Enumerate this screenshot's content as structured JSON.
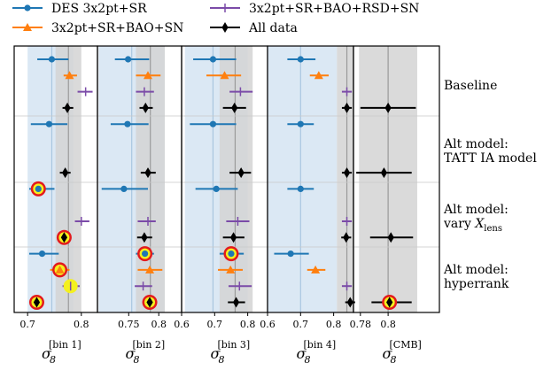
{
  "chart_data": {
    "type": "scatter",
    "legend": {
      "placement": "top",
      "entries": [
        {
          "key": "des",
          "label": "DES 3x2pt+SR"
        },
        {
          "key": "bao_sn",
          "label": "3x2pt+SR+BAO+SN"
        },
        {
          "key": "bao_rsd_sn",
          "label": "3x2pt+SR+BAO+RSD+SN"
        },
        {
          "key": "all",
          "label": "All data"
        }
      ]
    },
    "colors": {
      "des": "#1f77b4",
      "bao_sn": "#ff7f0e",
      "bao_rsd_sn": "#7b4ba8",
      "all": "#000000",
      "highlight_ring": "#e31a1c",
      "highlight_fill": "#f4f01e",
      "blue_band": "#dbe8f4",
      "gray_band": "#d4d4d4",
      "separator": "#c8c8c8"
    },
    "groups": [
      {
        "label_lines": [
          "Baseline"
        ]
      },
      {
        "label_lines": [
          "Alt model:",
          "TATT IA model"
        ]
      },
      {
        "label_lines": [
          "Alt model:",
          "vary X_lens"
        ]
      },
      {
        "label_lines": [
          "Alt model:",
          "hyperrank"
        ]
      }
    ],
    "panels": [
      {
        "xlabel": {
          "main": "σ",
          "sub": "8",
          "sup": "[bin 1]"
        },
        "xlim": [
          0.675,
          0.83
        ],
        "ticks": [
          {
            "v": 0.7,
            "label": "0.7"
          },
          {
            "v": 0.8,
            "label": "0.8"
          }
        ],
        "blue_band": [
          0.7,
          0.785
        ],
        "gray_band": [
          0.752,
          0.8
        ],
        "blue_line": 0.745,
        "gray_line": 0.776,
        "points": [
          {
            "row": 0,
            "series": "des",
            "x": 0.745,
            "lo": 0.718,
            "hi": 0.776
          },
          {
            "row": 1,
            "series": "bao_sn",
            "x": 0.778,
            "lo": 0.767,
            "hi": 0.792
          },
          {
            "row": 2,
            "series": "bao_rsd_sn",
            "x": 0.808,
            "lo": 0.793,
            "hi": 0.821
          },
          {
            "row": 3,
            "series": "all",
            "x": 0.774,
            "lo": 0.765,
            "hi": 0.785
          },
          {
            "row": 4,
            "series": "des",
            "x": 0.74,
            "lo": 0.706,
            "hi": 0.774
          },
          {
            "row": 7,
            "series": "all",
            "x": 0.77,
            "lo": 0.76,
            "hi": 0.78
          },
          {
            "row": 8,
            "series": "des",
            "x": 0.72,
            "lo": 0.703,
            "hi": 0.75,
            "highlight": true
          },
          {
            "row": 10,
            "series": "bao_rsd_sn",
            "x": 0.8,
            "lo": 0.788,
            "hi": 0.815
          },
          {
            "row": 11,
            "series": "all",
            "x": 0.768,
            "lo": 0.758,
            "hi": 0.779,
            "highlight": true
          },
          {
            "row": 12,
            "series": "des",
            "x": 0.727,
            "lo": 0.703,
            "hi": 0.758
          },
          {
            "row": 13,
            "series": "bao_sn",
            "x": 0.76,
            "lo": 0.742,
            "hi": 0.778,
            "highlight": true
          },
          {
            "row": 14,
            "series": "bao_rsd_sn",
            "x": 0.78,
            "lo": 0.765,
            "hi": 0.797,
            "highlight": true
          },
          {
            "row": 15,
            "series": "all",
            "x": 0.717,
            "lo": 0.708,
            "hi": 0.727,
            "highlight": true
          }
        ]
      },
      {
        "xlabel": {
          "main": "σ",
          "sub": "8",
          "sup": "[bin 2]"
        },
        "xlim": [
          0.698,
          0.838
        ],
        "ticks": [
          {
            "v": 0.75,
            "label": "0.75"
          },
          {
            "v": 0.8,
            "label": "0.8"
          }
        ],
        "blue_band": [
          0.7,
          0.81
        ],
        "gray_band": [
          0.762,
          0.81
        ],
        "blue_line": 0.755,
        "gray_line": 0.786,
        "points": [
          {
            "row": 0,
            "series": "des",
            "x": 0.749,
            "lo": 0.727,
            "hi": 0.784
          },
          {
            "row": 1,
            "series": "bao_sn",
            "x": 0.782,
            "lo": 0.762,
            "hi": 0.803
          },
          {
            "row": 2,
            "series": "bao_rsd_sn",
            "x": 0.776,
            "lo": 0.762,
            "hi": 0.792
          },
          {
            "row": 3,
            "series": "all",
            "x": 0.778,
            "lo": 0.768,
            "hi": 0.79
          },
          {
            "row": 4,
            "series": "des",
            "x": 0.748,
            "lo": 0.72,
            "hi": 0.783
          },
          {
            "row": 7,
            "series": "all",
            "x": 0.782,
            "lo": 0.77,
            "hi": 0.795
          },
          {
            "row": 8,
            "series": "des",
            "x": 0.742,
            "lo": 0.705,
            "hi": 0.782
          },
          {
            "row": 10,
            "series": "bao_rsd_sn",
            "x": 0.782,
            "lo": 0.765,
            "hi": 0.795
          },
          {
            "row": 11,
            "series": "all",
            "x": 0.776,
            "lo": 0.764,
            "hi": 0.789
          },
          {
            "row": 12,
            "series": "des",
            "x": 0.777,
            "lo": 0.762,
            "hi": 0.792,
            "highlight": true
          },
          {
            "row": 13,
            "series": "bao_sn",
            "x": 0.785,
            "lo": 0.765,
            "hi": 0.806
          },
          {
            "row": 14,
            "series": "bao_rsd_sn",
            "x": 0.774,
            "lo": 0.76,
            "hi": 0.789
          },
          {
            "row": 15,
            "series": "all",
            "x": 0.785,
            "lo": 0.773,
            "hi": 0.797,
            "highlight": true
          }
        ]
      },
      {
        "xlabel": {
          "main": "σ",
          "sub": "8",
          "sup": "[bin 3]"
        },
        "xlim": [
          0.6,
          0.86
        ],
        "ticks": [
          {
            "v": 0.6,
            "label": "0.6"
          },
          {
            "v": 0.7,
            "label": "0.7"
          },
          {
            "v": 0.8,
            "label": "0.8"
          }
        ],
        "blue_band": [
          0.61,
          0.8
        ],
        "gray_band": [
          0.715,
          0.815
        ],
        "blue_line": 0.695,
        "gray_line": 0.762,
        "points": [
          {
            "row": 0,
            "series": "des",
            "x": 0.695,
            "lo": 0.635,
            "hi": 0.765
          },
          {
            "row": 1,
            "series": "bao_sn",
            "x": 0.73,
            "lo": 0.675,
            "hi": 0.78
          },
          {
            "row": 2,
            "series": "bao_rsd_sn",
            "x": 0.778,
            "lo": 0.745,
            "hi": 0.815
          },
          {
            "row": 3,
            "series": "all",
            "x": 0.76,
            "lo": 0.725,
            "hi": 0.795
          },
          {
            "row": 4,
            "series": "des",
            "x": 0.695,
            "lo": 0.625,
            "hi": 0.765
          },
          {
            "row": 7,
            "series": "all",
            "x": 0.78,
            "lo": 0.745,
            "hi": 0.81
          },
          {
            "row": 8,
            "series": "des",
            "x": 0.705,
            "lo": 0.642,
            "hi": 0.77
          },
          {
            "row": 10,
            "series": "bao_rsd_sn",
            "x": 0.77,
            "lo": 0.735,
            "hi": 0.805
          },
          {
            "row": 11,
            "series": "all",
            "x": 0.757,
            "lo": 0.725,
            "hi": 0.79
          },
          {
            "row": 12,
            "series": "des",
            "x": 0.75,
            "lo": 0.715,
            "hi": 0.788,
            "highlight": true
          },
          {
            "row": 13,
            "series": "bao_sn",
            "x": 0.748,
            "lo": 0.71,
            "hi": 0.785
          },
          {
            "row": 14,
            "series": "bao_rsd_sn",
            "x": 0.775,
            "lo": 0.742,
            "hi": 0.812
          },
          {
            "row": 15,
            "series": "all",
            "x": 0.765,
            "lo": 0.74,
            "hi": 0.792
          }
        ]
      },
      {
        "xlabel": {
          "main": "σ",
          "sub": "8",
          "sup": "[bin 4]"
        },
        "xlim": [
          0.6,
          0.86
        ],
        "ticks": [
          {
            "v": 0.6,
            "label": "0.6"
          },
          {
            "v": 0.7,
            "label": "0.7"
          },
          {
            "v": 0.8,
            "label": "0.8"
          }
        ],
        "blue_band": [
          0.6,
          0.81
        ],
        "gray_band": [
          0.81,
          0.86
        ],
        "blue_line": 0.7,
        "gray_line": 0.84,
        "points": [
          {
            "row": 0,
            "series": "des",
            "x": 0.7,
            "lo": 0.66,
            "hi": 0.745
          },
          {
            "row": 1,
            "series": "bao_sn",
            "x": 0.755,
            "lo": 0.728,
            "hi": 0.785
          },
          {
            "row": 2,
            "series": "bao_rsd_sn",
            "x": 0.84,
            "lo": 0.825,
            "hi": 0.855
          },
          {
            "row": 3,
            "series": "all",
            "x": 0.84,
            "lo": 0.825,
            "hi": 0.855
          },
          {
            "row": 4,
            "series": "des",
            "x": 0.7,
            "lo": 0.66,
            "hi": 0.74
          },
          {
            "row": 7,
            "series": "all",
            "x": 0.84,
            "lo": 0.825,
            "hi": 0.855
          },
          {
            "row": 8,
            "series": "des",
            "x": 0.7,
            "lo": 0.66,
            "hi": 0.74
          },
          {
            "row": 10,
            "series": "bao_rsd_sn",
            "x": 0.84,
            "lo": 0.825,
            "hi": 0.855
          },
          {
            "row": 11,
            "series": "all",
            "x": 0.838,
            "lo": 0.823,
            "hi": 0.853
          },
          {
            "row": 12,
            "series": "des",
            "x": 0.67,
            "lo": 0.62,
            "hi": 0.725
          },
          {
            "row": 13,
            "series": "bao_sn",
            "x": 0.745,
            "lo": 0.72,
            "hi": 0.775
          },
          {
            "row": 14,
            "series": "bao_rsd_sn",
            "x": 0.84,
            "lo": 0.825,
            "hi": 0.855
          },
          {
            "row": 15,
            "series": "all",
            "x": 0.85,
            "lo": 0.835,
            "hi": 0.865
          }
        ]
      },
      {
        "xlabel": {
          "main": "σ",
          "sub": "8",
          "sup": "[CMB]"
        },
        "xlim": [
          0.775,
          0.837
        ],
        "ticks": [
          {
            "v": 0.78,
            "label": "0.78"
          },
          {
            "v": 0.8,
            "label": "0.8"
          }
        ],
        "blue_band": null,
        "gray_band": [
          0.779,
          0.821
        ],
        "blue_line": null,
        "gray_line": 0.8,
        "points": [
          {
            "row": 3,
            "series": "all",
            "x": 0.8,
            "lo": 0.78,
            "hi": 0.82
          },
          {
            "row": 7,
            "series": "all",
            "x": 0.797,
            "lo": 0.777,
            "hi": 0.817
          },
          {
            "row": 11,
            "series": "all",
            "x": 0.802,
            "lo": 0.787,
            "hi": 0.818
          },
          {
            "row": 15,
            "series": "all",
            "x": 0.801,
            "lo": 0.788,
            "hi": 0.817,
            "highlight": true
          }
        ]
      }
    ]
  }
}
